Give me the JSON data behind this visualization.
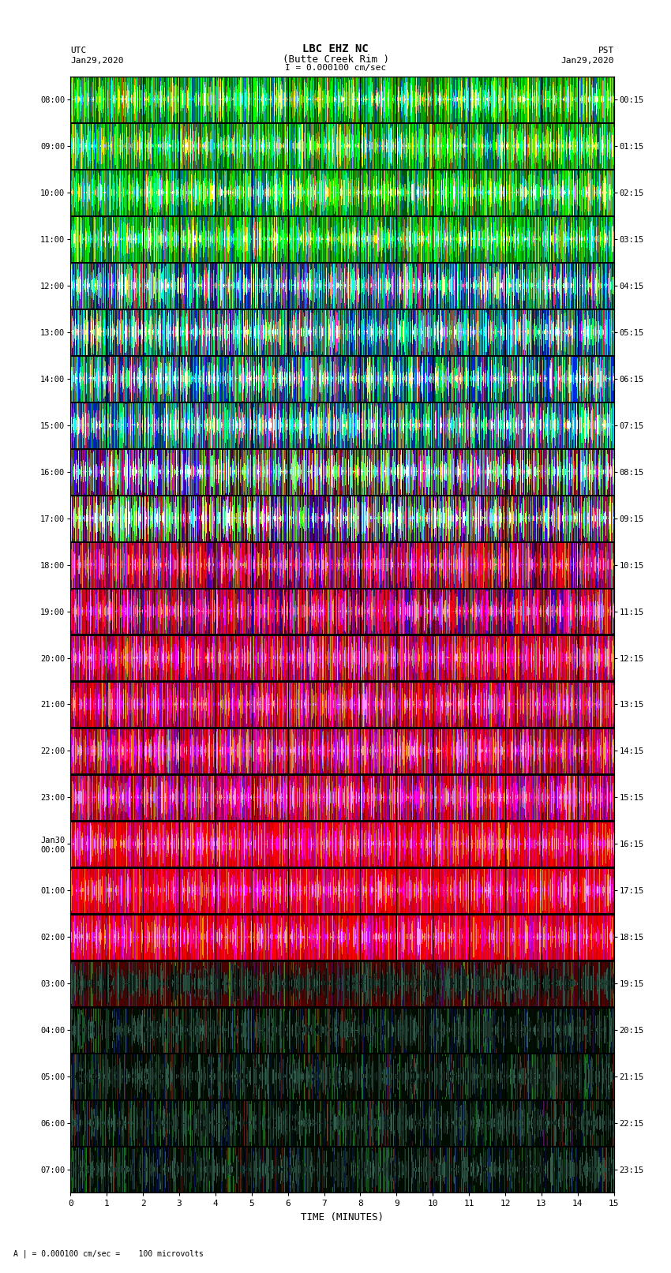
{
  "title_line1": "LBC EHZ NC",
  "title_line2": "(Butte Creek Rim )",
  "scale_text": "I = 0.000100 cm/sec",
  "bottom_label": "A | = 0.000100 cm/sec =    100 microvolts",
  "left_label_top": "UTC",
  "left_label_date": "Jan29,2020",
  "right_label_top": "PST",
  "right_label_date": "Jan29,2020",
  "xlabel": "TIME (MINUTES)",
  "utc_times": [
    "08:00",
    "09:00",
    "10:00",
    "11:00",
    "12:00",
    "13:00",
    "14:00",
    "15:00",
    "16:00",
    "17:00",
    "18:00",
    "19:00",
    "20:00",
    "21:00",
    "22:00",
    "23:00",
    "Jan30\n00:00",
    "01:00",
    "02:00",
    "03:00",
    "04:00",
    "05:00",
    "06:00",
    "07:00"
  ],
  "pst_times": [
    "00:15",
    "01:15",
    "02:15",
    "03:15",
    "04:15",
    "05:15",
    "06:15",
    "07:15",
    "08:15",
    "09:15",
    "10:15",
    "11:15",
    "12:15",
    "13:15",
    "14:15",
    "15:15",
    "16:15",
    "17:15",
    "18:15",
    "19:15",
    "20:15",
    "21:15",
    "22:15",
    "23:15"
  ],
  "n_time_rows": 24,
  "n_minutes": 15,
  "fig_bg": "#ffffff",
  "seed": 42
}
